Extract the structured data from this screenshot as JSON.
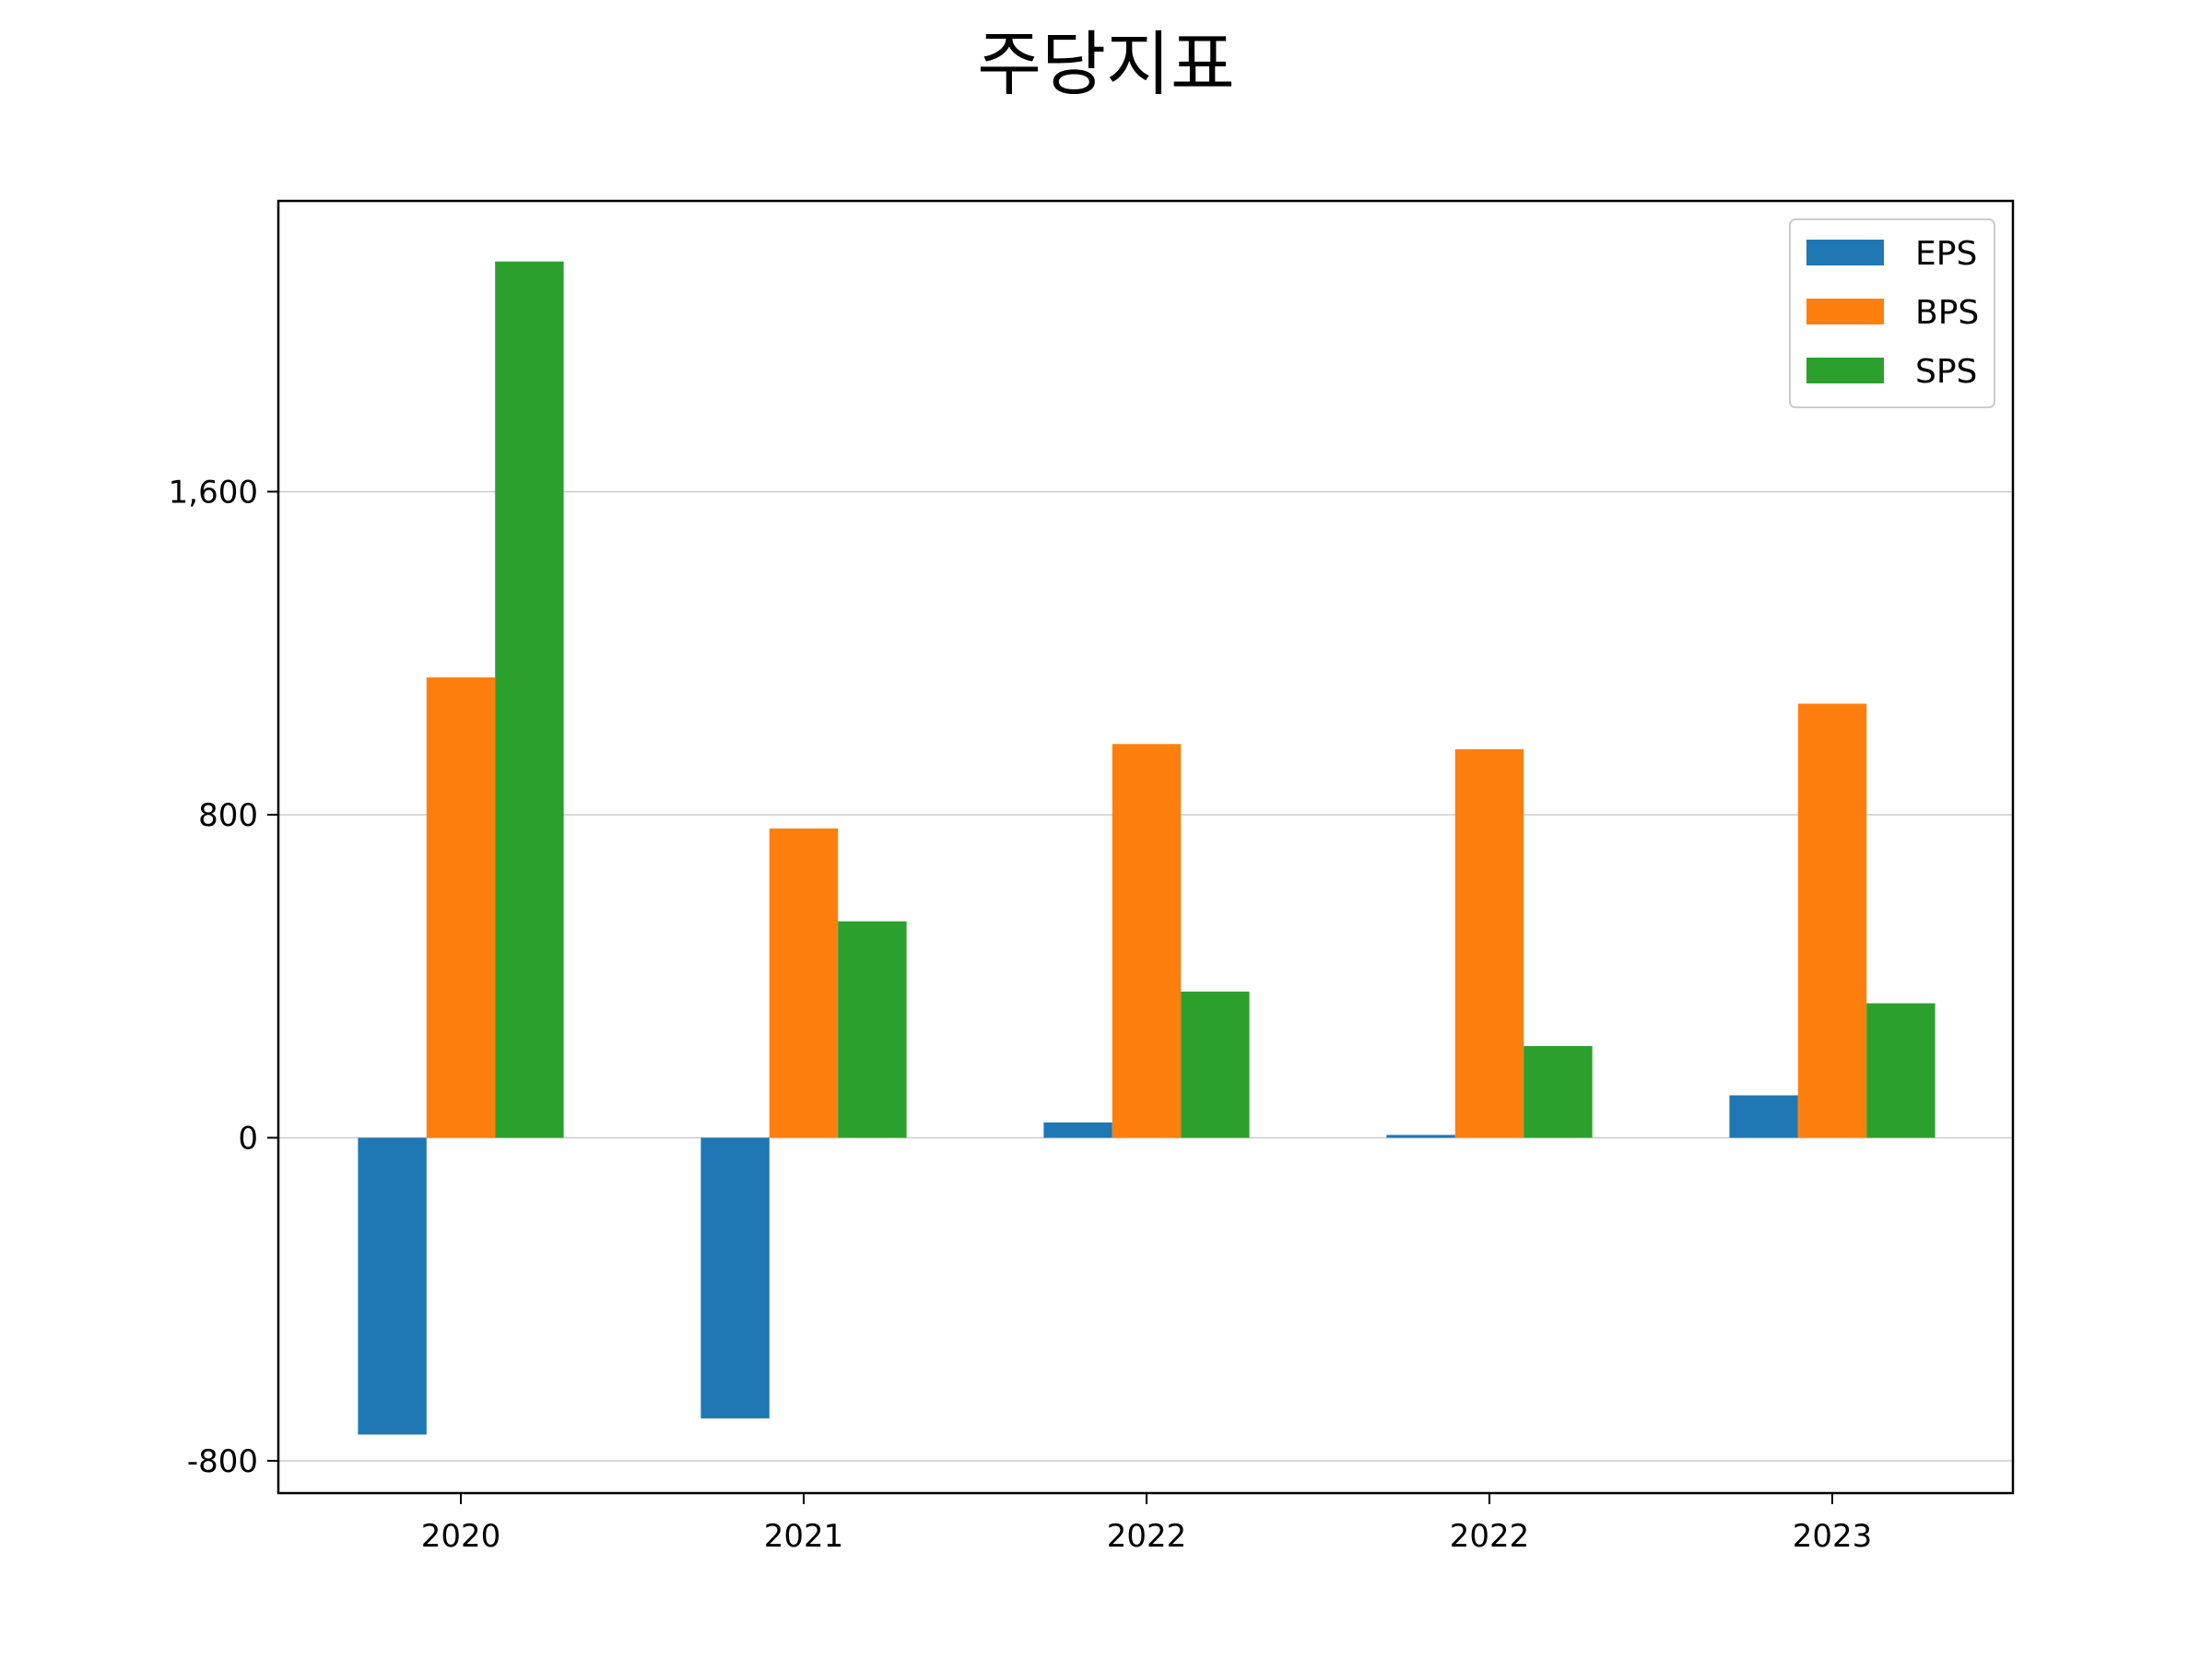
{
  "chart_data": {
    "type": "bar",
    "title": "주당지표",
    "xlabel": "",
    "ylabel": "",
    "categories": [
      "2020",
      "2021",
      "2022",
      "2022",
      "2023"
    ],
    "series": [
      {
        "name": "EPS",
        "color": "#1f77b4",
        "values": [
          -735,
          -695,
          38,
          7,
          105
        ]
      },
      {
        "name": "BPS",
        "color": "#ff7f0e",
        "values": [
          1140,
          766,
          975,
          962,
          1075
        ]
      },
      {
        "name": "SPS",
        "color": "#2ca02c",
        "values": [
          2170,
          536,
          362,
          227,
          333
        ]
      }
    ],
    "ylim": [
      -880,
      2320
    ],
    "yticks": [
      -800,
      0,
      800,
      1600
    ],
    "ytick_labels": [
      "-800",
      "0",
      "800",
      "1,600"
    ],
    "grid": "y",
    "legend": "top-right"
  }
}
